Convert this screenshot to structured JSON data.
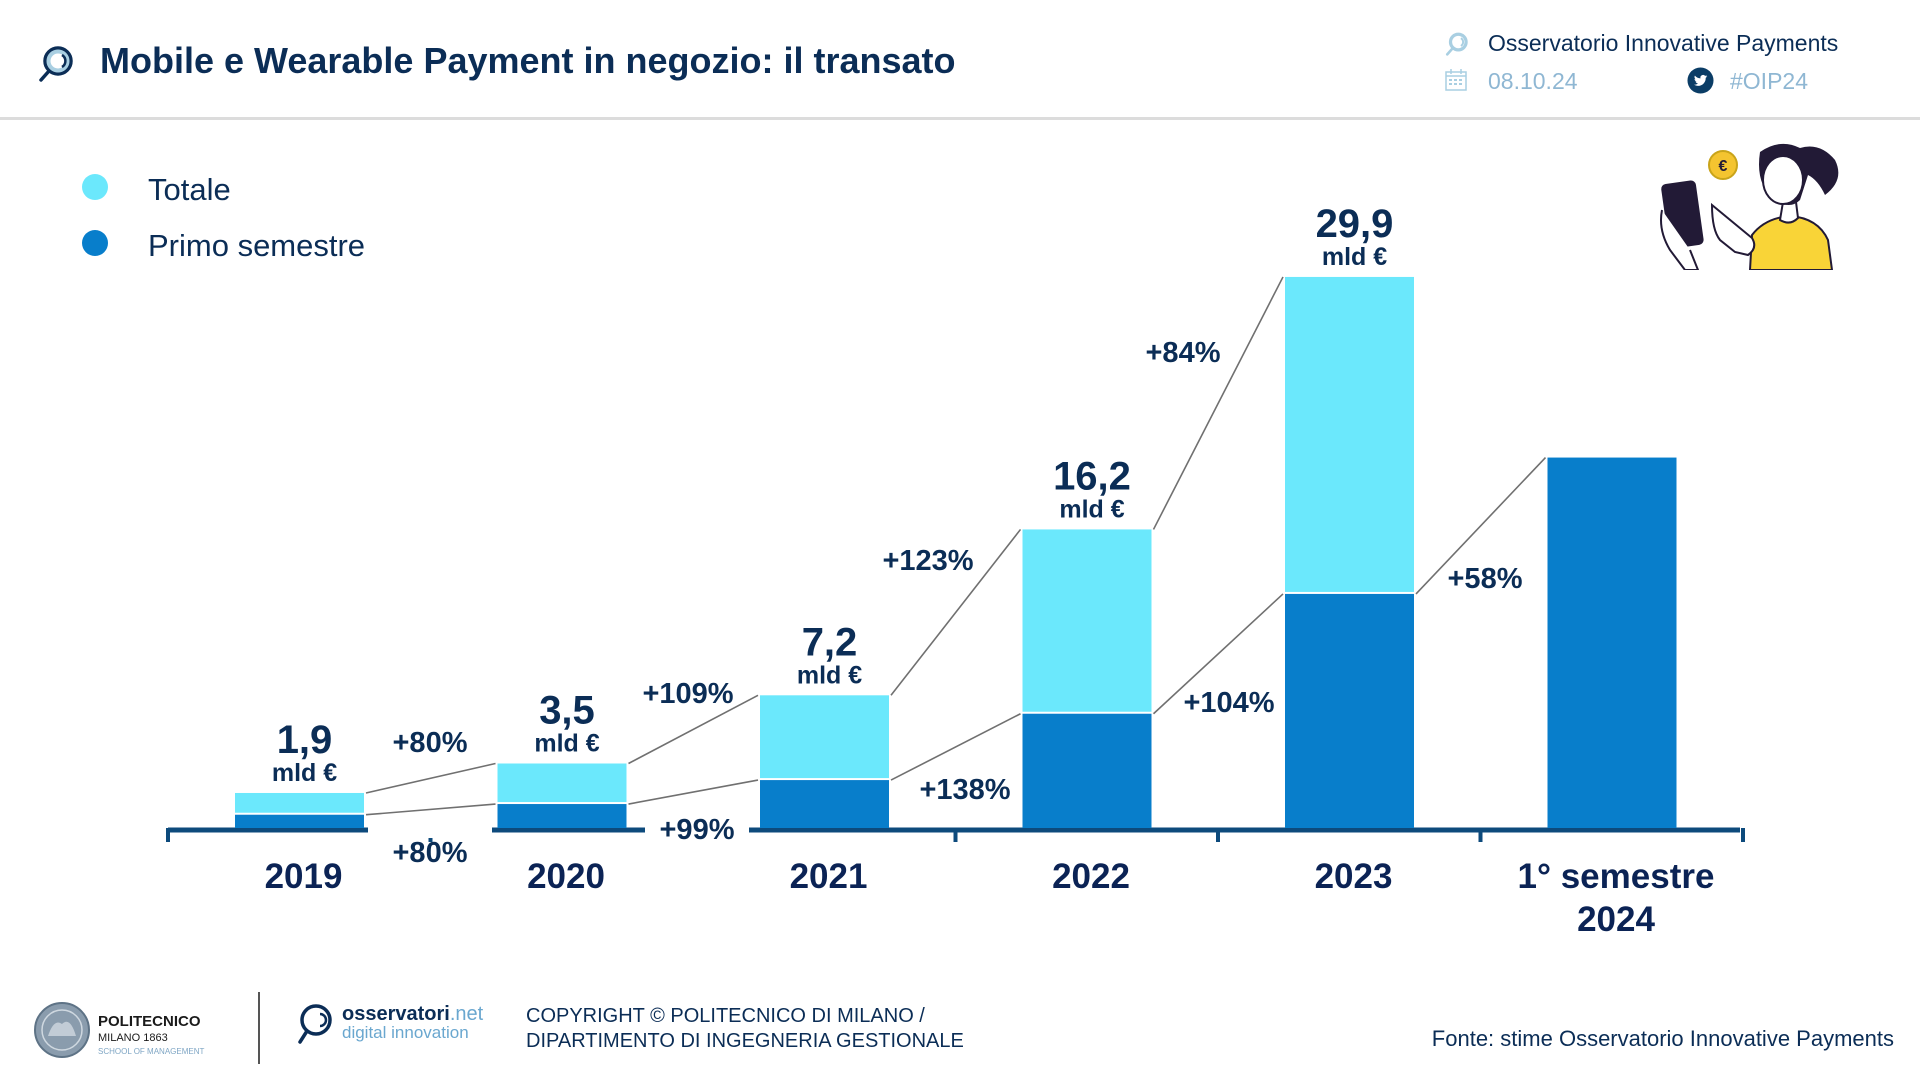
{
  "header": {
    "title": "Mobile e Wearable Payment in negozio: il transato",
    "title_icon": "magnifier-logo-icon",
    "observatory": "Osservatorio Innovative Payments",
    "observatory_icon": "magnifier-logo-icon",
    "date": "08.10.24",
    "date_icon": "calendar-icon",
    "hashtag": "#OIP24",
    "hashtag_icon": "twitter-icon"
  },
  "colors": {
    "totale": "#6be8fc",
    "primo_semestre": "#087ecb",
    "axis": "#0d4a7c",
    "text": "#0b2d56",
    "connector": "#707070"
  },
  "chart_data": {
    "type": "bar",
    "title": "Mobile e Wearable Payment in negozio: il transato",
    "xlabel": "",
    "ylabel": "",
    "unit": "mld €",
    "grid": false,
    "legend_position": "top-left",
    "categories": [
      "2019",
      "2020",
      "2021",
      "2022",
      "2023",
      "1° semestre 2024"
    ],
    "category_lines": [
      [
        "2019"
      ],
      [
        "2020"
      ],
      [
        "2021"
      ],
      [
        "2022"
      ],
      [
        "2023"
      ],
      [
        "1° semestre",
        "2024"
      ]
    ],
    "series": [
      {
        "name": "Totale",
        "values": [
          1.9,
          3.5,
          7.2,
          16.2,
          29.9,
          null
        ]
      },
      {
        "name": "Primo semestre",
        "values": [
          0.72,
          1.3,
          2.6,
          6.2,
          12.7,
          20.1
        ]
      }
    ],
    "value_labels": [
      {
        "number": "1,9",
        "unit": "mld €"
      },
      {
        "number": "3,5",
        "unit": "mld €"
      },
      {
        "number": "7,2",
        "unit": "mld €"
      },
      {
        "number": "16,2",
        "unit": "mld €"
      },
      {
        "number": "29,9",
        "unit": "mld €"
      },
      null
    ],
    "growth_totale": [
      "+80%",
      "+109%",
      "+123%",
      "+84%"
    ],
    "growth_primo_semestre": [
      "+80%",
      "+99%",
      "+138%",
      "+104%",
      "+58%"
    ],
    "ylim": [
      0,
      30
    ]
  },
  "legend": [
    {
      "label": "Totale",
      "color": "#6be8fc"
    },
    {
      "label": "Primo semestre",
      "color": "#087ecb"
    }
  ],
  "illustration": "woman-paying-with-smartphone-illustration",
  "footer": {
    "polimi": {
      "name": "POLITECNICO",
      "sub": "MILANO 1863",
      "school": "SCHOOL OF MANAGEMENT"
    },
    "osservatori": {
      "name": "osservatori",
      "tld": ".net",
      "tagline": "digital innovation"
    },
    "copyright_line1": "COPYRIGHT © POLITECNICO DI MILANO /",
    "copyright_line2": "DIPARTIMENTO DI INGEGNERIA GESTIONALE",
    "source": "Fonte: stime Osservatorio Innovative Payments"
  }
}
